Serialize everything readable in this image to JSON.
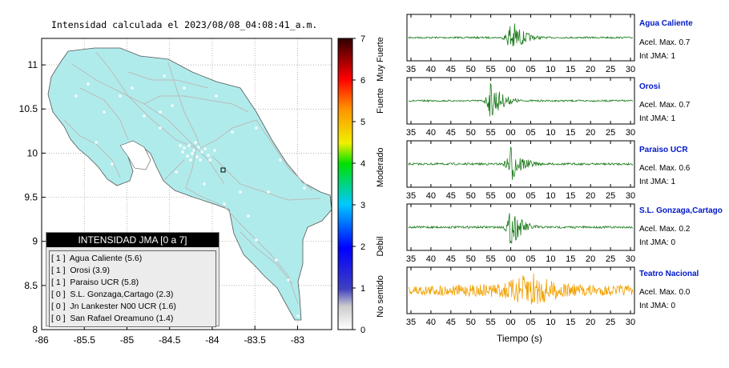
{
  "map": {
    "title": "Intensidad calculada el 2023/08/08_04:08:41_a.m.",
    "x_ticks": [
      "-86",
      "-85.5",
      "-85",
      "-84.5",
      "-84",
      "-83.5",
      "-83"
    ],
    "y_ticks": [
      "11",
      "10.5",
      "10",
      "9.5",
      "9",
      "8.5",
      "8"
    ],
    "x_range": [
      -86,
      -82.6
    ],
    "y_range": [
      8,
      11.3
    ],
    "land_color": "#b0ebeb",
    "road_color": "#bbbbbb",
    "station_color": "#ffffff",
    "legend": {
      "title": "INTENSIDAD JMA [0 a 7]",
      "items": [
        "[ 1 ]  Agua Caliente (5.6)",
        "[ 1 ]  Orosi (3.9)",
        "[ 1 ]  Paraiso UCR (5.8)",
        "[ 0 ]  S.L. Gonzaga,Cartago (2.3)",
        "[ 0 ]  Jn Lankester N00 UCR (1.6)",
        "[ 0 ]  San Rafael Oreamuno (1.4)"
      ]
    }
  },
  "colorbar": {
    "ticks": [
      "0",
      "1",
      "2",
      "3",
      "4",
      "5",
      "6",
      "7"
    ],
    "range": [
      0,
      7
    ],
    "category_labels": [
      "No sentido",
      "Debil",
      "Moderado",
      "Fuerte",
      "Muy Fuerte"
    ]
  },
  "traces": {
    "xlabel": "Tiempo (s)",
    "tick_labels": [
      "35",
      "40",
      "45",
      "50",
      "55",
      "00",
      "05",
      "10",
      "15",
      "20",
      "25",
      "30"
    ],
    "stations": [
      {
        "name": "Agua Caliente",
        "accel": "Acel. Max. 0.7",
        "jma": "Int JMA: 1",
        "color": "#1a7a1a",
        "noise": 0.04,
        "peak_tick": "00",
        "amp": 1.0
      },
      {
        "name": "Orosi",
        "accel": "Acel. Max. 0.7",
        "jma": "Int JMA: 1",
        "color": "#1a7a1a",
        "noise": 0.04,
        "peak_tick": "55",
        "amp": 1.0
      },
      {
        "name": "Paraiso UCR",
        "accel": "Acel. Max. 0.6",
        "jma": "Int JMA: 1",
        "color": "#1a7a1a",
        "noise": 0.05,
        "peak_tick": "00",
        "amp": 1.0
      },
      {
        "name": "S.L. Gonzaga,Cartago",
        "accel": "Acel. Max. 0.2",
        "jma": "Int JMA: 0",
        "color": "#1a7a1a",
        "noise": 0.05,
        "peak_tick": "00",
        "amp": 1.0
      },
      {
        "name": "Teatro Nacional",
        "accel": "Acel. Max. 0.0",
        "jma": "Int JMA: 0",
        "color": "#f0a000",
        "noise": 0.25,
        "peak_tick": "05",
        "amp": 1.0
      }
    ]
  },
  "chart_data": [
    {
      "type": "scatter",
      "title": "Intensidad calculada el 2023/08/08_04:08:41_a.m.",
      "xlabel": "",
      "ylabel": "",
      "xlim": [
        -86,
        -82.6
      ],
      "ylim": [
        8,
        11.3
      ],
      "grid": true,
      "legend_position": "bottom-left"
    },
    {
      "type": "line",
      "xlabel": "Tiempo (s)",
      "series": [
        {
          "name": "Agua Caliente"
        },
        {
          "name": "Orosi"
        },
        {
          "name": "Paraiso UCR"
        },
        {
          "name": "S.L. Gonzaga,Cartago"
        },
        {
          "name": "Teatro Nacional"
        }
      ]
    }
  ]
}
